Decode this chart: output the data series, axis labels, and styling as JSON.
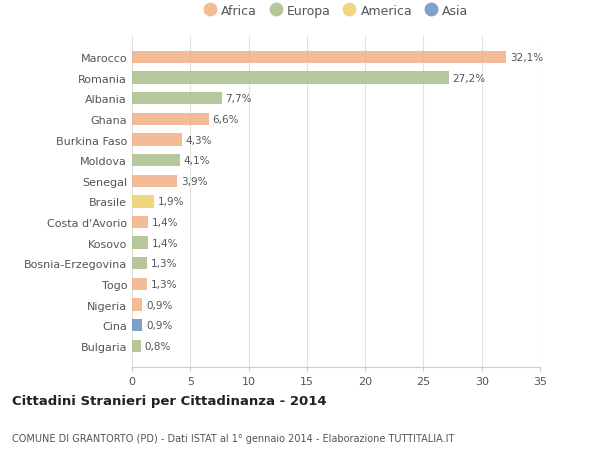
{
  "countries": [
    "Marocco",
    "Romania",
    "Albania",
    "Ghana",
    "Burkina Faso",
    "Moldova",
    "Senegal",
    "Brasile",
    "Costa d'Avorio",
    "Kosovo",
    "Bosnia-Erzegovina",
    "Togo",
    "Nigeria",
    "Cina",
    "Bulgaria"
  ],
  "values": [
    32.1,
    27.2,
    7.7,
    6.6,
    4.3,
    4.1,
    3.9,
    1.9,
    1.4,
    1.4,
    1.3,
    1.3,
    0.9,
    0.9,
    0.8
  ],
  "labels": [
    "32,1%",
    "27,2%",
    "7,7%",
    "6,6%",
    "4,3%",
    "4,1%",
    "3,9%",
    "1,9%",
    "1,4%",
    "1,4%",
    "1,3%",
    "1,3%",
    "0,9%",
    "0,9%",
    "0,8%"
  ],
  "continents": [
    "Africa",
    "Europa",
    "Europa",
    "Africa",
    "Africa",
    "Europa",
    "Africa",
    "America",
    "Africa",
    "Europa",
    "Europa",
    "Africa",
    "Africa",
    "Asia",
    "Europa"
  ],
  "colors": {
    "Africa": "#F2AF84",
    "Europa": "#AABF8A",
    "America": "#EDD06A",
    "Asia": "#6B8FC4"
  },
  "legend_order": [
    "Africa",
    "Europa",
    "America",
    "Asia"
  ],
  "title": "Cittadini Stranieri per Cittadinanza - 2014",
  "subtitle": "COMUNE DI GRANTORTO (PD) - Dati ISTAT al 1° gennaio 2014 - Elaborazione TUTTITALIA.IT",
  "xlim": [
    0,
    35
  ],
  "xticks": [
    0,
    5,
    10,
    15,
    20,
    25,
    30,
    35
  ],
  "background_color": "#ffffff",
  "grid_color": "#e0e0e0",
  "bar_alpha": 0.85
}
